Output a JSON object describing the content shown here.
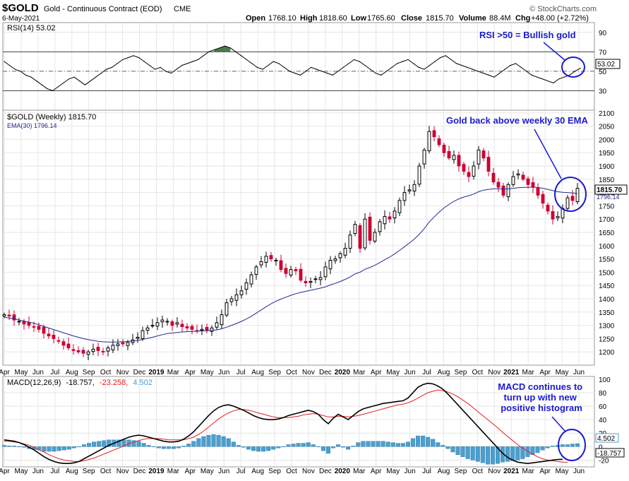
{
  "header": {
    "symbol": "$GOLD",
    "description": "Gold - Continuous Contract (EOD)",
    "exchange": "CME",
    "date": "6-May-2021",
    "watermark": "© StockCharts.com",
    "open_label": "Open",
    "open": "1768.10",
    "high_label": "High",
    "high": "1818.60",
    "low_label": "Low",
    "low": "1765.60",
    "close_label": "Close",
    "close": "1815.70",
    "volume_label": "Volume",
    "volume": "88.4M",
    "chg_label": "Chg",
    "chg": "+48.00 (+2.72%)"
  },
  "x_axis_labels": [
    "Apr",
    "May",
    "Jun",
    "Jul",
    "Aug",
    "Sep",
    "Oct",
    "Nov",
    "Dec",
    "2019",
    "Mar",
    "Apr",
    "May",
    "Jun",
    "Jul",
    "Aug",
    "Sep",
    "Oct",
    "Nov",
    "Dec",
    "2020",
    "Mar",
    "Apr",
    "May",
    "Jun",
    "Jul",
    "Aug",
    "Sep",
    "Oct",
    "Nov",
    "2021",
    "Mar",
    "Apr",
    "May",
    "Jun"
  ],
  "rsi": {
    "legend": "RSI(14) 53.02",
    "value_tag": "53.02",
    "annotation": "RSI >50 = Bullish gold",
    "ticks": [
      "90",
      "70",
      "50",
      "30"
    ]
  },
  "price": {
    "legend_title": "$GOLD (Weekly) 1815.70",
    "legend_ema": "EMA(30) 1796.14",
    "close_tag": "1815.70",
    "ema_tag": "1796.14",
    "annotation": "Gold back above weekly 30 EMA",
    "ticks": [
      "2100",
      "2050",
      "2000",
      "1950",
      "1900",
      "1850",
      "1800",
      "1750",
      "1700",
      "1650",
      "1600",
      "1550",
      "1500",
      "1450",
      "1400",
      "1350",
      "1300",
      "1250",
      "1200"
    ]
  },
  "macd": {
    "legend_name": "MACD(12,26,9)",
    "legend_macd": "-18.757,",
    "legend_signal": "-23.258,",
    "legend_hist": "4.502",
    "hist_tag": "4.502",
    "macd_tag": "-18.757",
    "annotation_lines": [
      "MACD continues to",
      "turn up with new",
      "positive histogram"
    ],
    "ticks": [
      "100",
      "80",
      "60",
      "40",
      "20",
      "0",
      "-20"
    ]
  },
  "colors": {
    "up": "#000000",
    "down": "#cc0033",
    "ema": "#1f2a8f",
    "macd": "#000000",
    "signal": "#e02020",
    "hist": "#4a9fd0",
    "annotation": "#1a1ad0",
    "rsi_fill": "#4a7a4a"
  },
  "chart_data": [
    {
      "type": "line",
      "title": "RSI(14)",
      "ylim": [
        10,
        100
      ],
      "reference_lines": [
        70,
        50,
        30
      ],
      "series": [
        {
          "name": "RSI(14)",
          "values": [
            60,
            56,
            52,
            50,
            46,
            44,
            40,
            36,
            32,
            30,
            34,
            38,
            42,
            44,
            40,
            36,
            40,
            44,
            48,
            52,
            54,
            58,
            62,
            64,
            66,
            64,
            60,
            56,
            52,
            54,
            50,
            48,
            52,
            56,
            58,
            60,
            62,
            66,
            70,
            72,
            74,
            76,
            74,
            70,
            66,
            62,
            58,
            54,
            52,
            56,
            60,
            58,
            54,
            50,
            48,
            46,
            50,
            54,
            52,
            50,
            48,
            46,
            50,
            54,
            58,
            62,
            60,
            56,
            52,
            48,
            46,
            50,
            54,
            58,
            60,
            62,
            58,
            54,
            52,
            56,
            60,
            64,
            66,
            62,
            58,
            56,
            54,
            52,
            50,
            48,
            46,
            44,
            48,
            52,
            56,
            58,
            54,
            50,
            46,
            44,
            42,
            40,
            38,
            42,
            44,
            46,
            50,
            53.02
          ]
        }
      ]
    },
    {
      "type": "candlestick",
      "title": "$GOLD (Weekly)",
      "ylim": [
        1150,
        2110
      ],
      "closes": [
        1340,
        1335,
        1320,
        1315,
        1305,
        1300,
        1295,
        1285,
        1270,
        1260,
        1250,
        1240,
        1225,
        1215,
        1205,
        1200,
        1195,
        1200,
        1210,
        1205,
        1200,
        1215,
        1225,
        1230,
        1230,
        1235,
        1245,
        1255,
        1280,
        1290,
        1300,
        1310,
        1320,
        1315,
        1300,
        1310,
        1295,
        1290,
        1285,
        1280,
        1285,
        1280,
        1290,
        1310,
        1340,
        1385,
        1400,
        1415,
        1430,
        1460,
        1490,
        1520,
        1540,
        1560,
        1550,
        1545,
        1510,
        1495,
        1510,
        1505,
        1470,
        1460,
        1465,
        1475,
        1480,
        1520,
        1545,
        1550,
        1570,
        1590,
        1640,
        1680,
        1590,
        1700,
        1620,
        1650,
        1690,
        1710,
        1700,
        1730,
        1770,
        1800,
        1810,
        1830,
        1900,
        1960,
        2030,
        2010,
        1980,
        1950,
        1930,
        1940,
        1900,
        1880,
        1860,
        1900,
        1960,
        1930,
        1880,
        1840,
        1820,
        1790,
        1830,
        1860,
        1870,
        1850,
        1830,
        1820,
        1790,
        1760,
        1730,
        1700,
        1710,
        1740,
        1780,
        1770,
        1815.7
      ],
      "ema30": [
        1330,
        1328,
        1325,
        1320,
        1316,
        1312,
        1308,
        1302,
        1296,
        1290,
        1284,
        1278,
        1272,
        1266,
        1260,
        1255,
        1250,
        1246,
        1243,
        1240,
        1238,
        1237,
        1237,
        1237,
        1238,
        1239,
        1241,
        1243,
        1247,
        1251,
        1255,
        1260,
        1265,
        1269,
        1271,
        1273,
        1275,
        1276,
        1277,
        1278,
        1279,
        1280,
        1281,
        1283,
        1287,
        1293,
        1300,
        1307,
        1315,
        1324,
        1334,
        1346,
        1358,
        1370,
        1381,
        1391,
        1399,
        1406,
        1413,
        1419,
        1424,
        1428,
        1432,
        1436,
        1440,
        1445,
        1452,
        1458,
        1465,
        1473,
        1482,
        1494,
        1500,
        1511,
        1518,
        1526,
        1536,
        1547,
        1557,
        1569,
        1582,
        1596,
        1610,
        1625,
        1643,
        1664,
        1689,
        1708,
        1726,
        1742,
        1755,
        1767,
        1776,
        1783,
        1788,
        1794,
        1803,
        1809,
        1812,
        1814,
        1814,
        1813,
        1814,
        1816,
        1818,
        1819,
        1820,
        1820,
        1819,
        1816,
        1812,
        1807,
        1803,
        1801,
        1800,
        1798,
        1796.14
      ]
    },
    {
      "type": "line",
      "title": "MACD(12,26,9)",
      "ylim": [
        -30,
        104
      ],
      "series": [
        {
          "name": "MACD",
          "values": [
            10,
            9,
            8,
            6,
            3,
            -1,
            -5,
            -10,
            -15,
            -19,
            -22,
            -24,
            -25,
            -25,
            -24,
            -22,
            -18,
            -14,
            -10,
            -6,
            -2,
            2,
            5,
            8,
            11,
            14,
            16,
            17,
            16,
            14,
            12,
            10,
            8,
            7,
            7,
            8,
            11,
            16,
            22,
            30,
            38,
            46,
            53,
            58,
            61,
            62,
            60,
            57,
            54,
            50,
            46,
            43,
            41,
            40,
            40,
            41,
            43,
            46,
            48,
            50,
            52,
            54,
            52,
            48,
            40,
            34,
            42,
            48,
            44,
            40,
            46,
            52,
            56,
            58,
            60,
            62,
            64,
            65,
            66,
            67,
            68,
            72,
            80,
            88,
            92,
            94,
            93,
            90,
            85,
            78,
            70,
            62,
            54,
            46,
            38,
            30,
            22,
            14,
            6,
            -2,
            -10,
            -16,
            -20,
            -23,
            -24,
            -25,
            -24,
            -23,
            -22,
            -21,
            -20,
            -19,
            -18.757
          ]
        },
        {
          "name": "Signal",
          "values": [
            8,
            8,
            7,
            6,
            4,
            2,
            -1,
            -5,
            -8,
            -12,
            -15,
            -18,
            -20,
            -21,
            -22,
            -22,
            -21,
            -19,
            -17,
            -14,
            -11,
            -8,
            -5,
            -2,
            1,
            4,
            7,
            9,
            11,
            12,
            12,
            12,
            11,
            10,
            10,
            10,
            10,
            12,
            14,
            18,
            23,
            29,
            35,
            41,
            46,
            50,
            53,
            55,
            55,
            54,
            52,
            50,
            48,
            46,
            44,
            43,
            43,
            43,
            44,
            45,
            47,
            48,
            49,
            48,
            46,
            44,
            44,
            45,
            45,
            44,
            45,
            46,
            48,
            50,
            52,
            54,
            56,
            58,
            60,
            62,
            63,
            65,
            68,
            72,
            76,
            80,
            82,
            84,
            83,
            81,
            78,
            74,
            69,
            64,
            58,
            52,
            46,
            40,
            34,
            28,
            21,
            15,
            9,
            3,
            -2,
            -7,
            -11,
            -15,
            -18,
            -20,
            -21,
            -22,
            -23,
            -23.258
          ]
        },
        {
          "name": "Histogram",
          "values": [
            2,
            1,
            1,
            0,
            -1,
            -3,
            -4,
            -5,
            -7,
            -7,
            -7,
            -6,
            -5,
            -4,
            -2,
            0,
            3,
            5,
            7,
            8,
            9,
            10,
            10,
            10,
            10,
            10,
            9,
            8,
            5,
            2,
            0,
            -2,
            -3,
            -3,
            -3,
            -2,
            1,
            4,
            8,
            12,
            15,
            17,
            18,
            17,
            15,
            12,
            7,
            2,
            -1,
            -4,
            -6,
            -7,
            -7,
            -6,
            -4,
            -2,
            0,
            3,
            4,
            5,
            5,
            6,
            3,
            0,
            -6,
            -10,
            -2,
            3,
            -1,
            -4,
            1,
            6,
            8,
            8,
            8,
            8,
            8,
            7,
            6,
            5,
            5,
            7,
            12,
            16,
            16,
            14,
            11,
            6,
            2,
            -3,
            -8,
            -12,
            -15,
            -18,
            -20,
            -22,
            -24,
            -26,
            -26,
            -25,
            -23,
            -22,
            -21,
            -20,
            -18,
            -15,
            -12,
            -9,
            -5,
            -2,
            1,
            2,
            3,
            3,
            4,
            4.502
          ]
        }
      ]
    }
  ]
}
